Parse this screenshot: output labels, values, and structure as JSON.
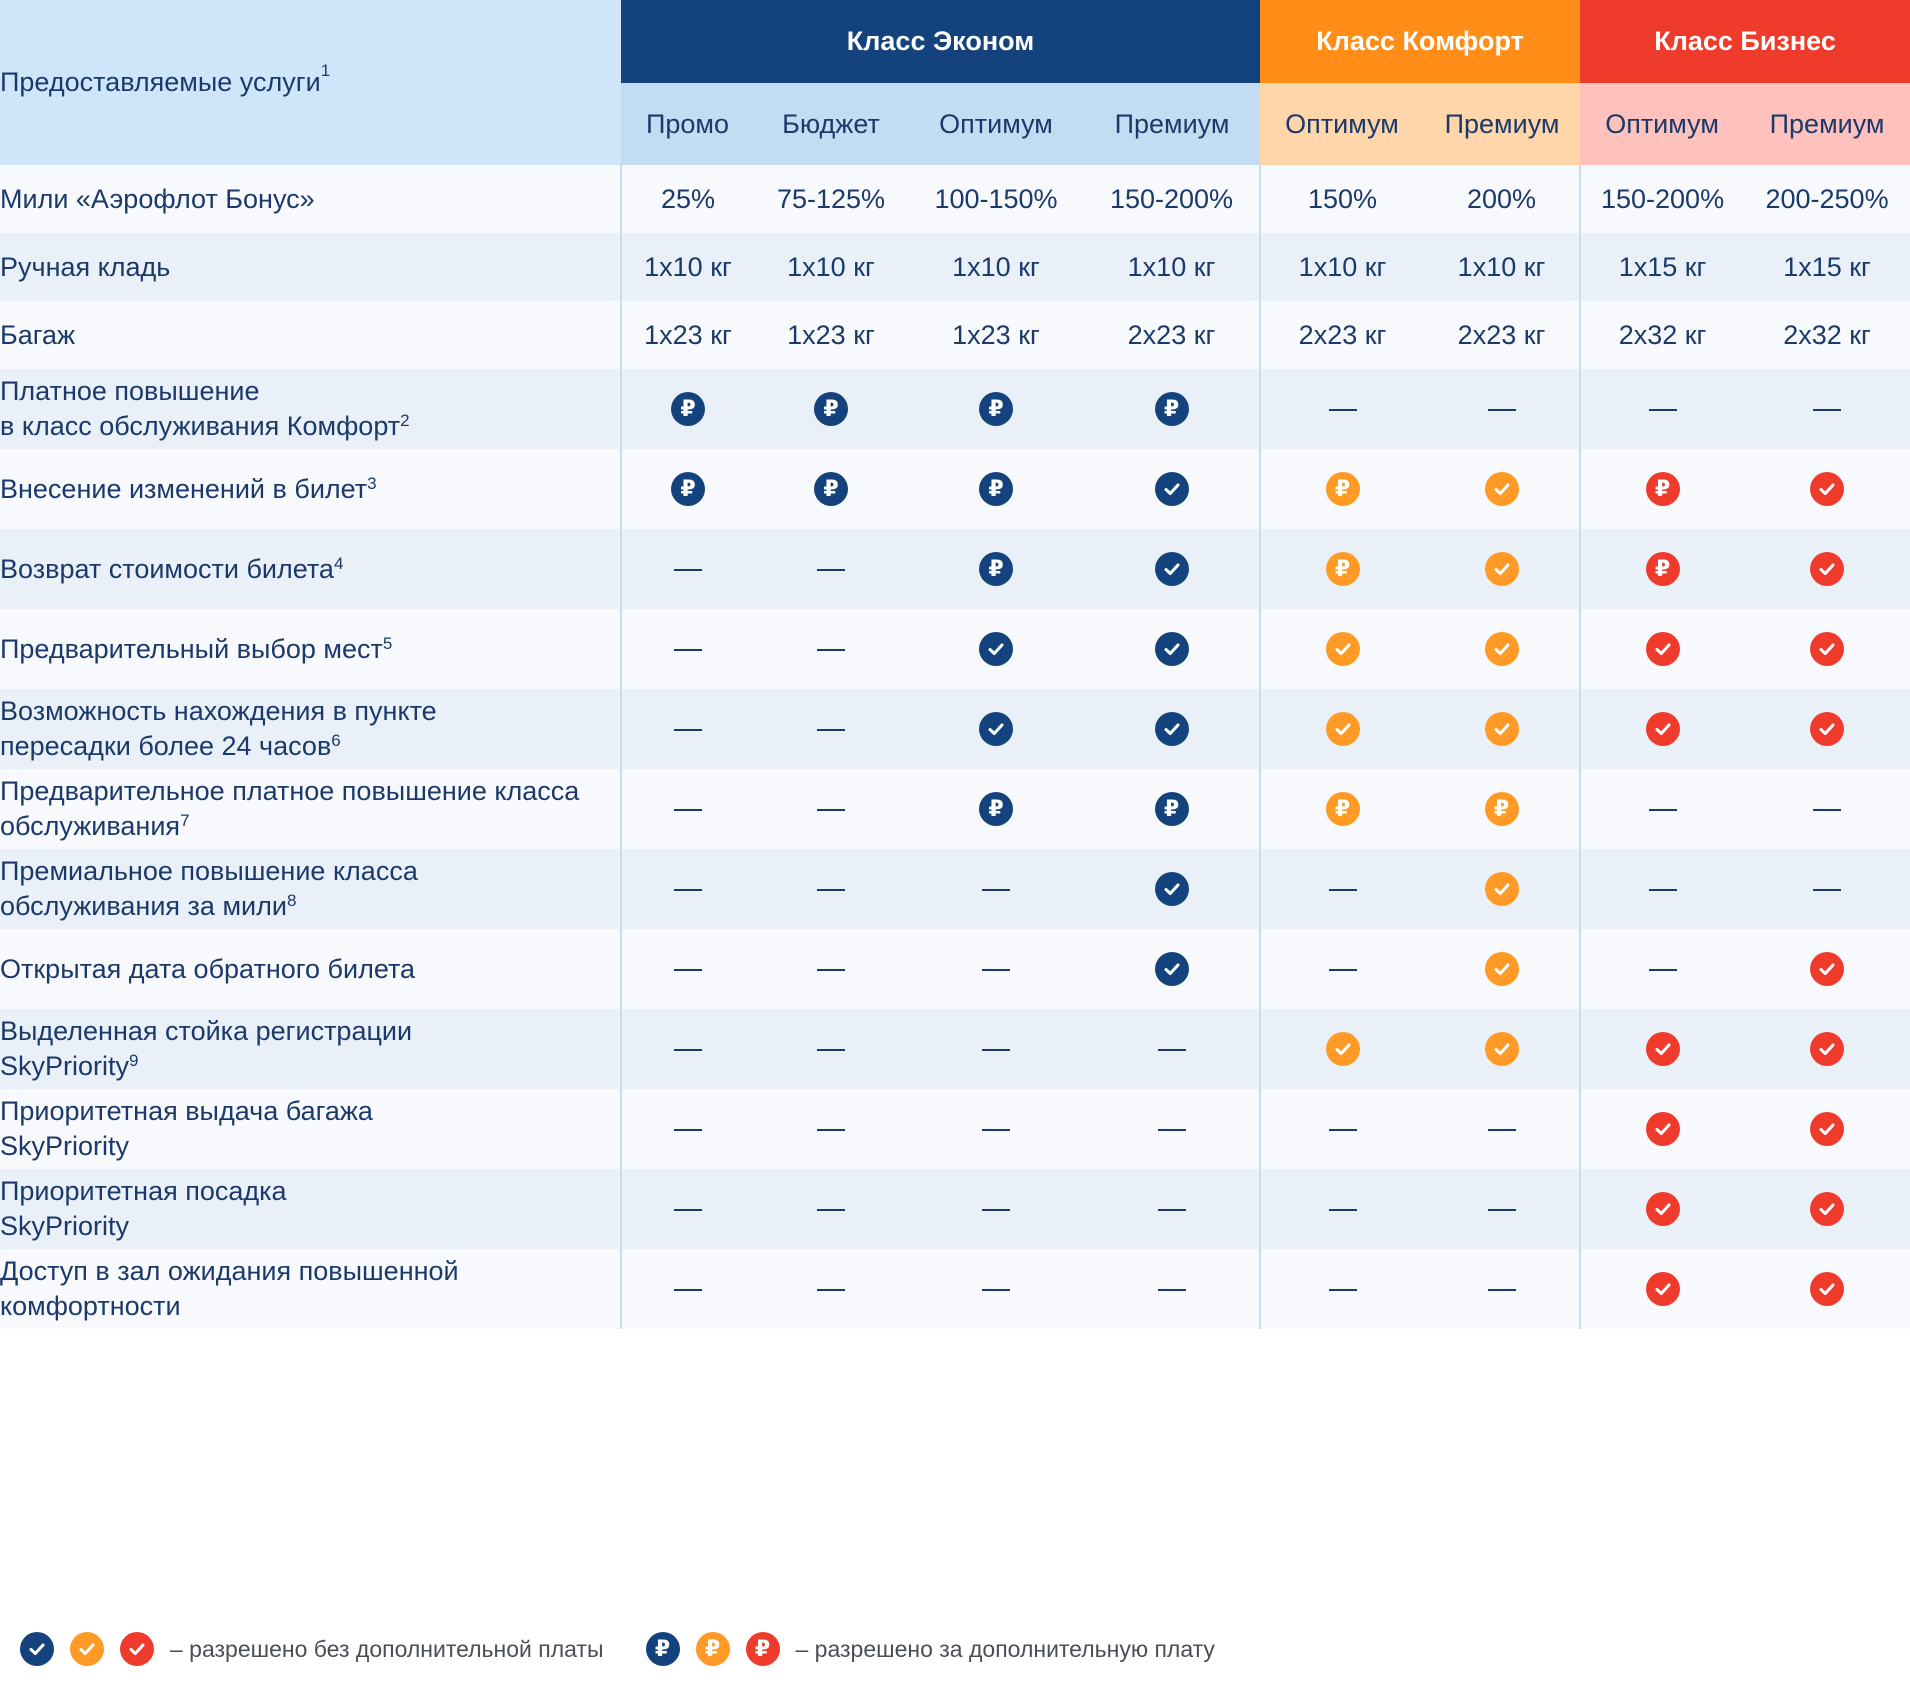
{
  "corner": {
    "label": "Предоставляемые услуги",
    "sup": "1"
  },
  "classes": [
    {
      "key": "eco",
      "title": "Класс Эконом",
      "color": "#13427d",
      "fares": [
        "Промо",
        "Бюджет",
        "Оптимум",
        "Премиум"
      ]
    },
    {
      "key": "com",
      "title": "Класс Комфорт",
      "color": "#ff8d18",
      "fares": [
        "Оптимум",
        "Премиум"
      ]
    },
    {
      "key": "bus",
      "title": "Класс Бизнес",
      "color": "#ee3b2b",
      "fares": [
        "Оптимум",
        "Премиум"
      ]
    }
  ],
  "colors": {
    "navy": "#13427d",
    "orange": "#ff9a26",
    "red": "#ee3b2b"
  },
  "icons": {
    "check": "check-icon",
    "paid": "ruble-icon",
    "none": "dash-icon"
  },
  "rows": [
    {
      "label": "Мили «Аэрофлот Бонус»",
      "sup": "",
      "cells": [
        "25%",
        "75-125%",
        "100-150%",
        "150-200%",
        "150%",
        "200%",
        "150-200%",
        "200-250%"
      ]
    },
    {
      "label": "Ручная кладь",
      "sup": "",
      "cells": [
        "1x10 кг",
        "1x10 кг",
        "1x10 кг",
        "1x10 кг",
        "1x10 кг",
        "1x10 кг",
        "1x15 кг",
        "1x15 кг"
      ]
    },
    {
      "label": "Багаж",
      "sup": "",
      "cells": [
        "1x23 кг",
        "1x23 кг",
        "1x23 кг",
        "2x23 кг",
        "2x23 кг",
        "2x23 кг",
        "2x32 кг",
        "2x32 кг"
      ]
    },
    {
      "label": "Платное повышение\nв класс обслуживания Комфорт",
      "sup": "2",
      "cells": [
        "paid",
        "paid",
        "paid",
        "paid",
        "none",
        "none",
        "none",
        "none"
      ]
    },
    {
      "label": "Внесение изменений в билет",
      "sup": "3",
      "cells": [
        "paid",
        "paid",
        "paid",
        "check",
        "paid",
        "check",
        "paid",
        "check"
      ]
    },
    {
      "label": "Возврат стоимости билета",
      "sup": "4",
      "cells": [
        "none",
        "none",
        "paid",
        "check",
        "paid",
        "check",
        "paid",
        "check"
      ]
    },
    {
      "label": "Предварительный выбор мест",
      "sup": "5",
      "cells": [
        "none",
        "none",
        "check",
        "check",
        "check",
        "check",
        "check",
        "check"
      ]
    },
    {
      "label": "Возможность нахождения в пункте\nпересадки более 24 часов",
      "sup": "6",
      "cells": [
        "none",
        "none",
        "check",
        "check",
        "check",
        "check",
        "check",
        "check"
      ]
    },
    {
      "label": "Предварительное платное повышение класса\nобслуживания",
      "sup": "7",
      "cells": [
        "none",
        "none",
        "paid",
        "paid",
        "paid",
        "paid",
        "none",
        "none"
      ]
    },
    {
      "label": "Премиальное повышение класса\nобслуживания за мили",
      "sup": "8",
      "cells": [
        "none",
        "none",
        "none",
        "check",
        "none",
        "check",
        "none",
        "none"
      ]
    },
    {
      "label": "Открытая дата обратного билета",
      "sup": "",
      "cells": [
        "none",
        "none",
        "none",
        "check",
        "none",
        "check",
        "none",
        "check"
      ]
    },
    {
      "label": "Выделенная стойка регистрации\nSkyPriority",
      "sup": "9",
      "cells": [
        "none",
        "none",
        "none",
        "none",
        "check",
        "check",
        "check",
        "check"
      ]
    },
    {
      "label": "Приоритетная выдача багажа\nSkyPriority",
      "sup": "",
      "cells": [
        "none",
        "none",
        "none",
        "none",
        "none",
        "none",
        "check",
        "check"
      ]
    },
    {
      "label": "Приоритетная посадка\nSkyPriority",
      "sup": "",
      "cells": [
        "none",
        "none",
        "none",
        "none",
        "none",
        "none",
        "check",
        "check"
      ]
    },
    {
      "label": "Доступ в зал ожидания повышенной\nкомфортности",
      "sup": "",
      "cells": [
        "none",
        "none",
        "none",
        "none",
        "none",
        "none",
        "check",
        "check"
      ]
    }
  ],
  "legend": {
    "free_text": "– разрешено без дополнительной платы",
    "paid_text": "– разрешено за дополнительную плату"
  }
}
